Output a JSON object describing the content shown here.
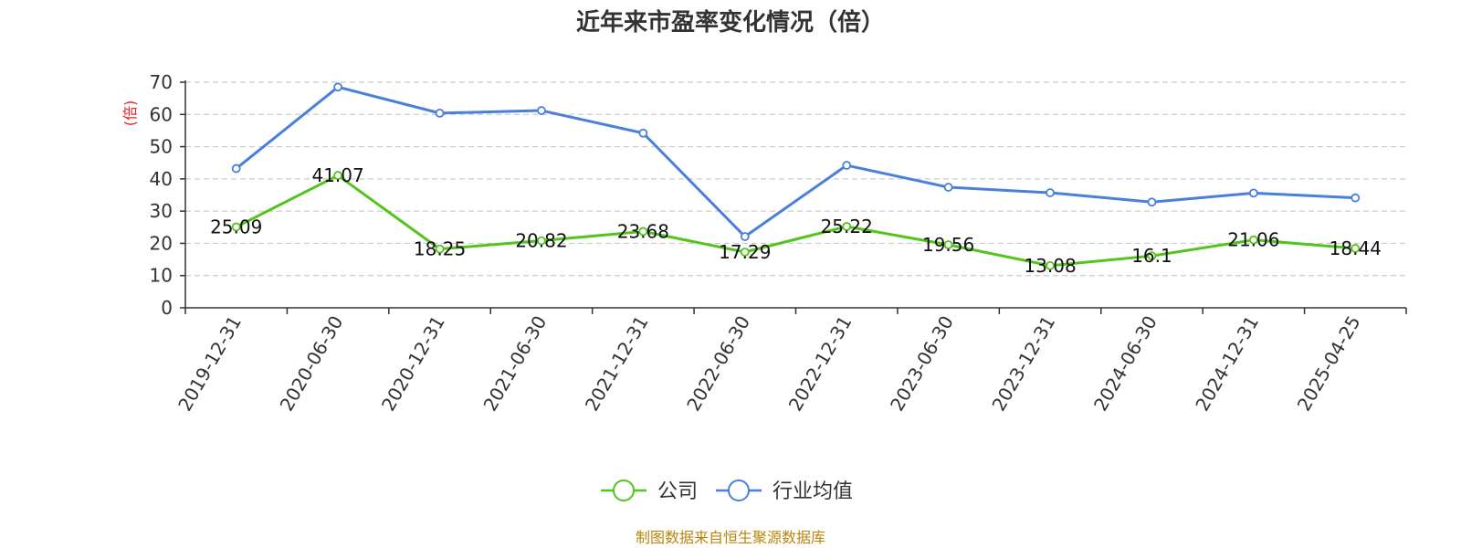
{
  "chart_data": {
    "type": "line",
    "title": "近年来市盈率变化情况（倍）",
    "ylabel": "(倍)",
    "xlabel": "",
    "ylim": [
      0,
      70
    ],
    "yticks": [
      0,
      10,
      20,
      30,
      40,
      50,
      60,
      70
    ],
    "grid": true,
    "legend_position": "bottom",
    "categories": [
      "2019-12-31",
      "2020-06-30",
      "2020-12-31",
      "2021-06-30",
      "2021-12-31",
      "2022-06-30",
      "2022-12-31",
      "2023-06-30",
      "2023-12-31",
      "2024-06-30",
      "2024-12-31",
      "2025-04-25"
    ],
    "series": [
      {
        "name": "公司",
        "color": "#52c41a",
        "values": [
          25.09,
          41.07,
          18.25,
          20.82,
          23.68,
          17.29,
          25.22,
          19.56,
          13.08,
          16.1,
          21.06,
          18.44
        ],
        "labels": [
          "25.09",
          "41.07",
          "18.25",
          "20.82",
          "23.68",
          "17.29",
          "25.22",
          "19.56",
          "13.08",
          "16.1",
          "21.06",
          "18.44"
        ]
      },
      {
        "name": "行业均值",
        "color": "#4a7fdb",
        "values": [
          43.2,
          68.5,
          60.4,
          61.2,
          54.2,
          22.1,
          44.2,
          37.4,
          35.7,
          32.8,
          35.6,
          34.1
        ]
      }
    ],
    "footer": "制图数据来自恒生聚源数据库",
    "colors": {
      "ylabel": "#e62020",
      "footer": "#b8860b",
      "axis": "#333333",
      "grid": "#cccccc"
    }
  }
}
